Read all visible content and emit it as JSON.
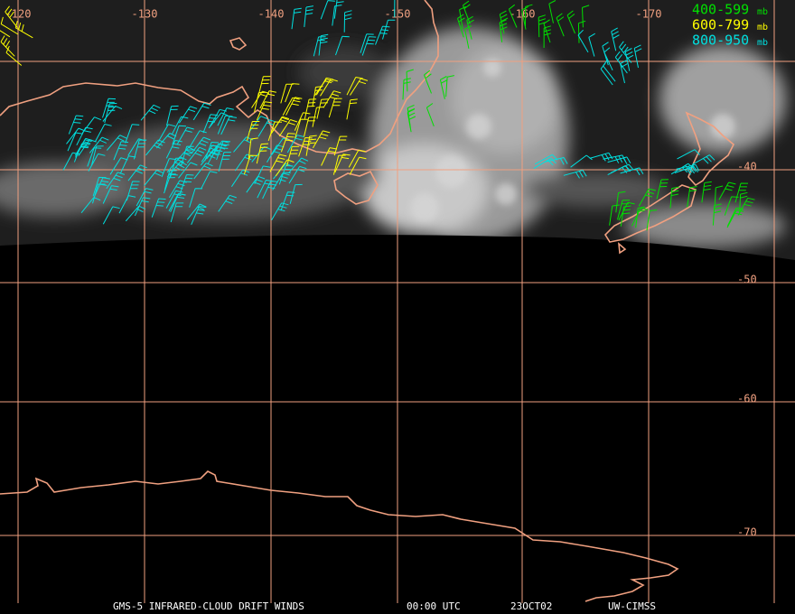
{
  "map": {
    "longitude_labels": [
      "-120",
      "-130",
      "-140",
      "-150",
      "-160",
      "-170"
    ],
    "latitude_labels": [
      "-40",
      "-50",
      "-60",
      "-70"
    ],
    "legend": [
      {
        "range": "400-599",
        "unit": "mb"
      },
      {
        "range": "600-799",
        "unit": "mb"
      },
      {
        "range": "800-950",
        "unit": "mb"
      }
    ],
    "footer": {
      "product": "GMS-5 INFRARED-CLOUD DRIFT WINDS",
      "time": "00:00 UTC",
      "date": "23OCT02",
      "source": "UW-CIMSS"
    }
  }
}
